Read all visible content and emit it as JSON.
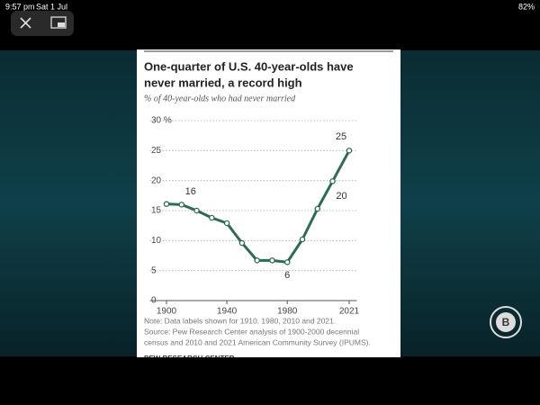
{
  "status_bar": {
    "time": "9:57 pm",
    "date": "Sat 1 Jul",
    "battery": "82%"
  },
  "chart_data": {
    "type": "line",
    "title": [
      "One-quarter of U.S. 40-year-olds have",
      "never married, a record high"
    ],
    "subtitle": "% of 40-year-olds who had never married",
    "x": [
      1900,
      1910,
      1920,
      1930,
      1940,
      1950,
      1960,
      1970,
      1980,
      1990,
      2000,
      2010,
      2021
    ],
    "series": [
      {
        "name": "Never married",
        "color": "#2d6b57",
        "values": [
          16.1,
          16,
          15,
          13.8,
          12.9,
          9.6,
          6.7,
          6.7,
          6.4,
          10.2,
          15.3,
          19.9,
          25
        ],
        "value_labels": [
          null,
          "16",
          null,
          null,
          null,
          null,
          null,
          null,
          "6",
          null,
          null,
          "20",
          "25"
        ]
      }
    ],
    "xlim": [
      1895,
      2026
    ],
    "xticks": [
      1900,
      1940,
      1980,
      2021
    ],
    "ylim": [
      0,
      30
    ],
    "yticks": [
      0,
      5,
      10,
      15,
      20,
      25,
      {
        "value": 30,
        "label": "30 %"
      }
    ],
    "grid": true,
    "notes": [
      "Note: Data labels shown for 1910, 1980, 2010 and 2021.",
      "Source: Pew Research Center analysis of 1900-2000 decennial",
      "census and 2010 and 2021 American Community Survey (IPUMS)."
    ],
    "source_brand": "PEW RESEARCH CENTER"
  }
}
